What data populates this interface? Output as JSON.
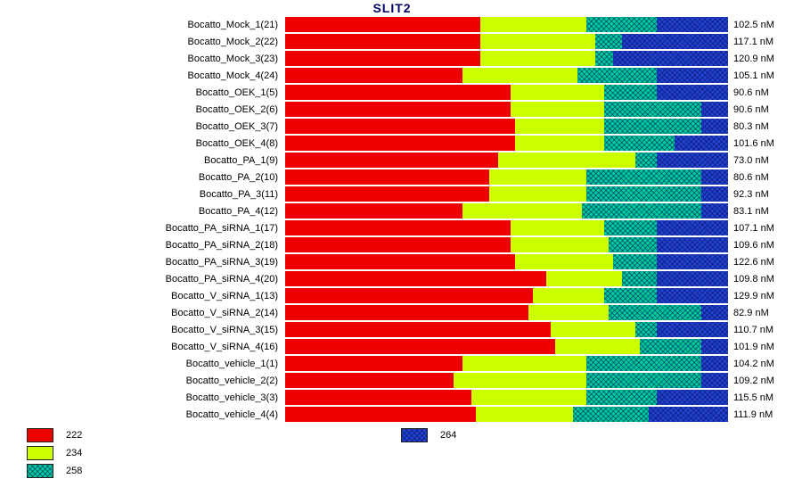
{
  "title": "SLIT2",
  "unit_suffix": " nM",
  "chart_data": {
    "type": "bar",
    "stacked": true,
    "orientation": "horizontal",
    "xlim_percent": [
      0,
      100
    ],
    "grid": false,
    "legend_position": "bottom-left",
    "categories": [
      "Bocatto_Mock_1(21)",
      "Bocatto_Mock_2(22)",
      "Bocatto_Mock_3(23)",
      "Bocatto_Mock_4(24)",
      "Bocatto_OEK_1(5)",
      "Bocatto_OEK_2(6)",
      "Bocatto_OEK_3(7)",
      "Bocatto_OEK_4(8)",
      "Bocatto_PA_1(9)",
      "Bocatto_PA_2(10)",
      "Bocatto_PA_3(11)",
      "Bocatto_PA_4(12)",
      "Bocatto_PA_siRNA_1(17)",
      "Bocatto_PA_siRNA_2(18)",
      "Bocatto_PA_siRNA_3(19)",
      "Bocatto_PA_siRNA_4(20)",
      "Bocatto_V_siRNA_1(13)",
      "Bocatto_V_siRNA_2(14)",
      "Bocatto_V_siRNA_3(15)",
      "Bocatto_V_siRNA_4(16)",
      "Bocatto_vehicle_1(1)",
      "Bocatto_vehicle_2(2)",
      "Bocatto_vehicle_3(3)",
      "Bocatto_vehicle_4(4)"
    ],
    "concentrations_nM": [
      102.5,
      117.1,
      120.9,
      105.1,
      90.6,
      90.6,
      80.3,
      101.6,
      73.0,
      80.6,
      92.3,
      83.1,
      107.1,
      109.6,
      122.6,
      109.8,
      129.9,
      82.9,
      110.7,
      101.9,
      104.2,
      109.2,
      115.5,
      111.9
    ],
    "series": [
      {
        "name": "222",
        "color": "#ee0000",
        "pattern": false,
        "values": [
          44,
          44,
          44,
          40,
          51,
          51,
          52,
          52,
          48,
          46,
          46,
          40,
          51,
          51,
          52,
          59,
          56,
          55,
          60,
          61,
          40,
          38,
          42,
          43
        ]
      },
      {
        "name": "234",
        "color": "#ccff00",
        "pattern": false,
        "values": [
          24,
          26,
          26,
          26,
          21,
          21,
          20,
          20,
          31,
          22,
          22,
          27,
          21,
          22,
          22,
          17,
          16,
          18,
          19,
          19,
          28,
          30,
          26,
          22
        ]
      },
      {
        "name": "258",
        "color": "#00cc99",
        "pattern": true,
        "values": [
          16,
          6,
          4,
          18,
          12,
          22,
          22,
          16,
          5,
          26,
          26,
          27,
          12,
          11,
          10,
          8,
          12,
          21,
          5,
          14,
          26,
          26,
          16,
          17
        ]
      },
      {
        "name": "264",
        "color": "#2244cc",
        "pattern": true,
        "values": [
          16,
          24,
          26,
          16,
          16,
          6,
          6,
          12,
          16,
          6,
          6,
          6,
          16,
          16,
          16,
          16,
          16,
          6,
          16,
          6,
          6,
          6,
          16,
          18
        ]
      }
    ]
  }
}
